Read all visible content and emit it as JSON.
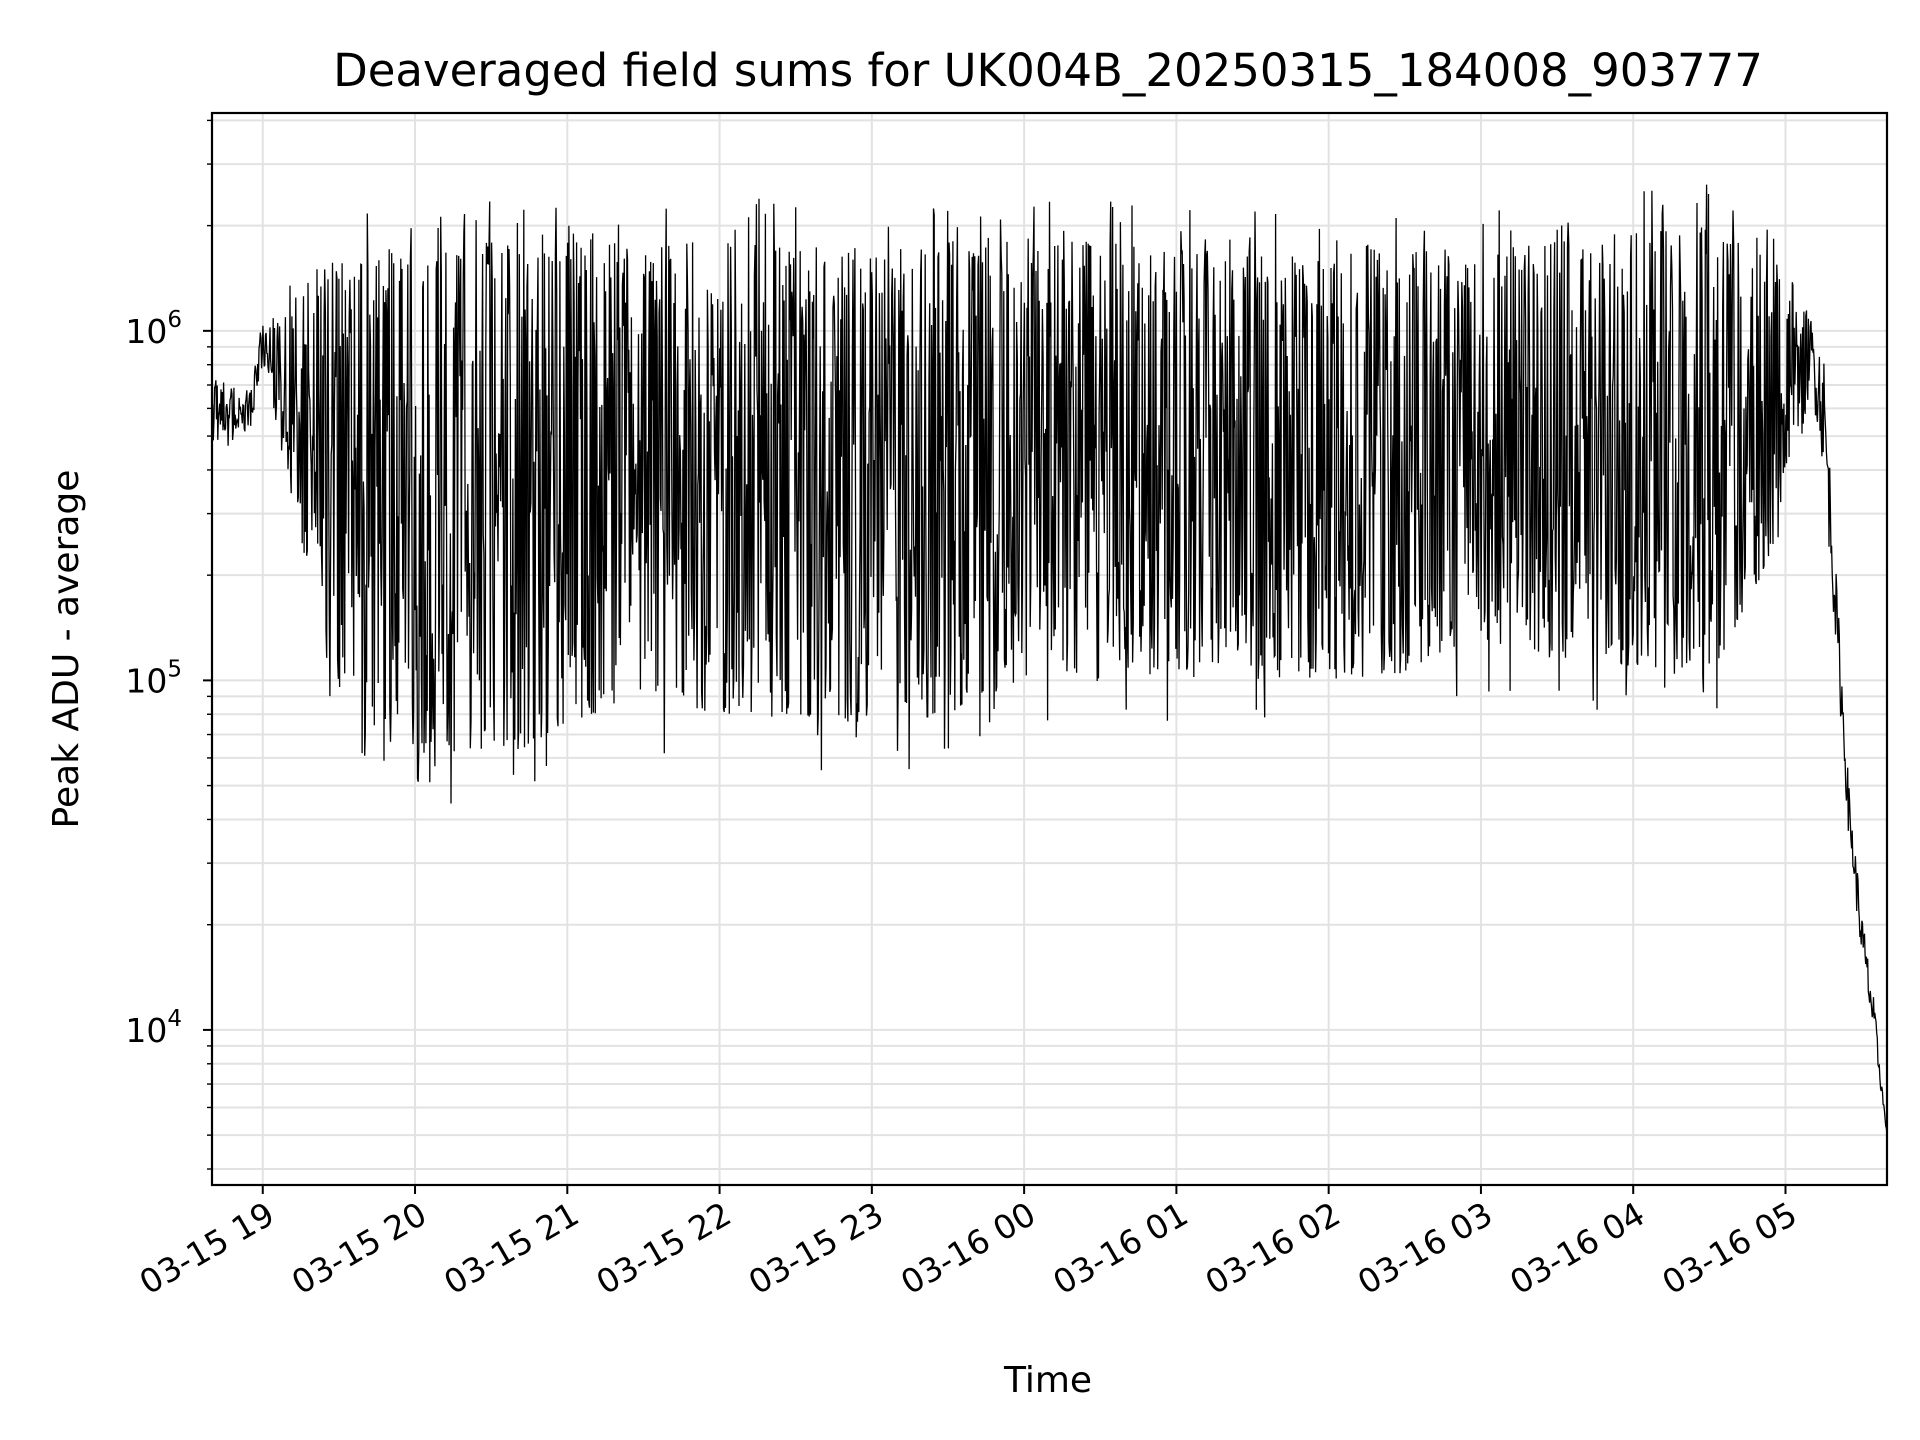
{
  "chart_data": {
    "type": "line",
    "title": "Deaveraged field sums for UK004B_20250315_184008_903777",
    "xlabel": "Time",
    "ylabel": "Peak ADU - average",
    "yscale": "log",
    "ylim": [
      3600,
      4200000
    ],
    "xlim": [
      "2025-03-15 18:40",
      "2025-03-16 05:40"
    ],
    "grid": true,
    "line_color": "#000000",
    "x_ticks": [
      {
        "value": "2025-03-15 19:00",
        "label": "03-15 19"
      },
      {
        "value": "2025-03-15 20:00",
        "label": "03-15 20"
      },
      {
        "value": "2025-03-15 21:00",
        "label": "03-15 21"
      },
      {
        "value": "2025-03-15 22:00",
        "label": "03-15 22"
      },
      {
        "value": "2025-03-15 23:00",
        "label": "03-15 23"
      },
      {
        "value": "2025-03-16 00:00",
        "label": "03-16 00"
      },
      {
        "value": "2025-03-16 01:00",
        "label": "03-16 01"
      },
      {
        "value": "2025-03-16 02:00",
        "label": "03-16 02"
      },
      {
        "value": "2025-03-16 03:00",
        "label": "03-16 03"
      },
      {
        "value": "2025-03-16 04:00",
        "label": "03-16 04"
      },
      {
        "value": "2025-03-16 05:00",
        "label": "03-16 05"
      }
    ],
    "y_ticks": [
      {
        "value": 10000,
        "base": "10",
        "exp": "4"
      },
      {
        "value": 100000,
        "base": "10",
        "exp": "5"
      },
      {
        "value": 1000000,
        "base": "10",
        "exp": "6"
      }
    ],
    "series": [
      {
        "x": [
          "2025-03-15 18:40",
          "2025-03-15 18:45",
          "2025-03-15 18:50",
          "2025-03-15 18:55",
          "2025-03-15 19:00",
          "2025-03-15 19:05",
          "2025-03-15 19:10",
          "2025-03-15 19:15",
          "2025-03-15 19:20",
          "2025-03-15 19:25",
          "2025-03-15 19:30",
          "2025-03-15 19:40",
          "2025-03-15 19:50",
          "2025-03-15 20:00",
          "2025-03-15 20:15",
          "2025-03-15 20:30",
          "2025-03-15 20:45",
          "2025-03-15 21:00",
          "2025-03-15 21:30",
          "2025-03-15 22:00",
          "2025-03-15 22:30",
          "2025-03-15 23:00",
          "2025-03-15 23:30",
          "2025-03-16 00:00",
          "2025-03-16 00:30",
          "2025-03-16 01:00",
          "2025-03-16 01:30",
          "2025-03-16 02:00",
          "2025-03-16 02:30",
          "2025-03-16 03:00",
          "2025-03-16 03:30",
          "2025-03-16 04:00",
          "2025-03-16 04:30",
          "2025-03-16 05:00",
          "2025-03-16 05:10",
          "2025-03-16 05:15",
          "2025-03-16 05:20",
          "2025-03-16 05:25",
          "2025-03-16 05:30",
          "2025-03-16 05:35",
          "2025-03-16 05:40"
        ],
        "low": [
          480000,
          450000,
          500000,
          520000,
          800000,
          550000,
          380000,
          250000,
          180000,
          120000,
          90000,
          70000,
          65000,
          62000,
          62000,
          60000,
          65000,
          75000,
          90000,
          80000,
          78000,
          75000,
          80000,
          100000,
          110000,
          105000,
          110000,
          100000,
          105000,
          130000,
          115000,
          110000,
          100000,
          280000,
          700000,
          400000,
          120000,
          35000,
          16000,
          9000,
          5000
        ],
        "high": [
          750000,
          720000,
          700000,
          680000,
          1100000,
          1100000,
          1200000,
          1300000,
          1500000,
          1600000,
          1700000,
          1700000,
          1700000,
          1700000,
          1700000,
          1800000,
          1700000,
          1800000,
          1800000,
          1900000,
          1800000,
          1800000,
          1900000,
          1800000,
          1800000,
          1700000,
          1700000,
          1600000,
          1700000,
          1700000,
          1800000,
          1900000,
          2000000,
          1500000,
          1100000,
          900000,
          200000,
          50000,
          22000,
          12000,
          5000
        ]
      }
    ]
  }
}
